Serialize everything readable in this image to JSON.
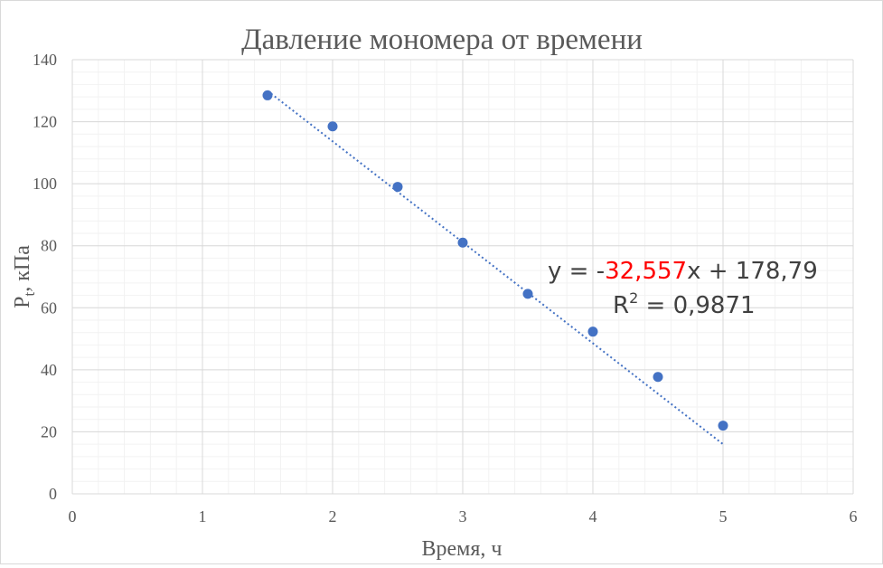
{
  "chart_data": {
    "type": "scatter",
    "title": "Давление мономера от времени",
    "xlabel": "Время, ч",
    "ylabel": {
      "main": "P",
      "sub": "t",
      "rest": ", кПа"
    },
    "xlim": [
      0,
      6
    ],
    "ylim": [
      0,
      140
    ],
    "x_ticks": [
      0,
      1,
      2,
      3,
      4,
      5,
      6
    ],
    "y_ticks": [
      0,
      20,
      40,
      60,
      80,
      100,
      120,
      140
    ],
    "x_minor_step": 0.2,
    "y_minor_step": 4,
    "grid": true,
    "points": [
      {
        "x": 1.5,
        "y": 128.5
      },
      {
        "x": 2.0,
        "y": 118.5
      },
      {
        "x": 2.5,
        "y": 99.0
      },
      {
        "x": 3.0,
        "y": 81.0
      },
      {
        "x": 3.5,
        "y": 64.5
      },
      {
        "x": 4.0,
        "y": 52.3
      },
      {
        "x": 4.5,
        "y": 37.7
      },
      {
        "x": 5.0,
        "y": 22.0
      }
    ],
    "trendline": {
      "type": "linear",
      "slope": -32.557,
      "intercept": 178.79,
      "x_range": [
        1.5,
        5.0
      ],
      "style": "dotted"
    },
    "equation": {
      "prefix": "y = -",
      "slope_text": "32,557",
      "suffix": "x + 178,79",
      "r2_label": "R",
      "r2_exp": "2",
      "r2_value": " = 0,9871"
    },
    "colors": {
      "marker": "#4472c4",
      "trendline": "#4472c4",
      "slope_highlight": "#ff0000",
      "major_grid": "#d9d9d9",
      "minor_grid": "#f2f2f2",
      "text": "#595959"
    }
  }
}
